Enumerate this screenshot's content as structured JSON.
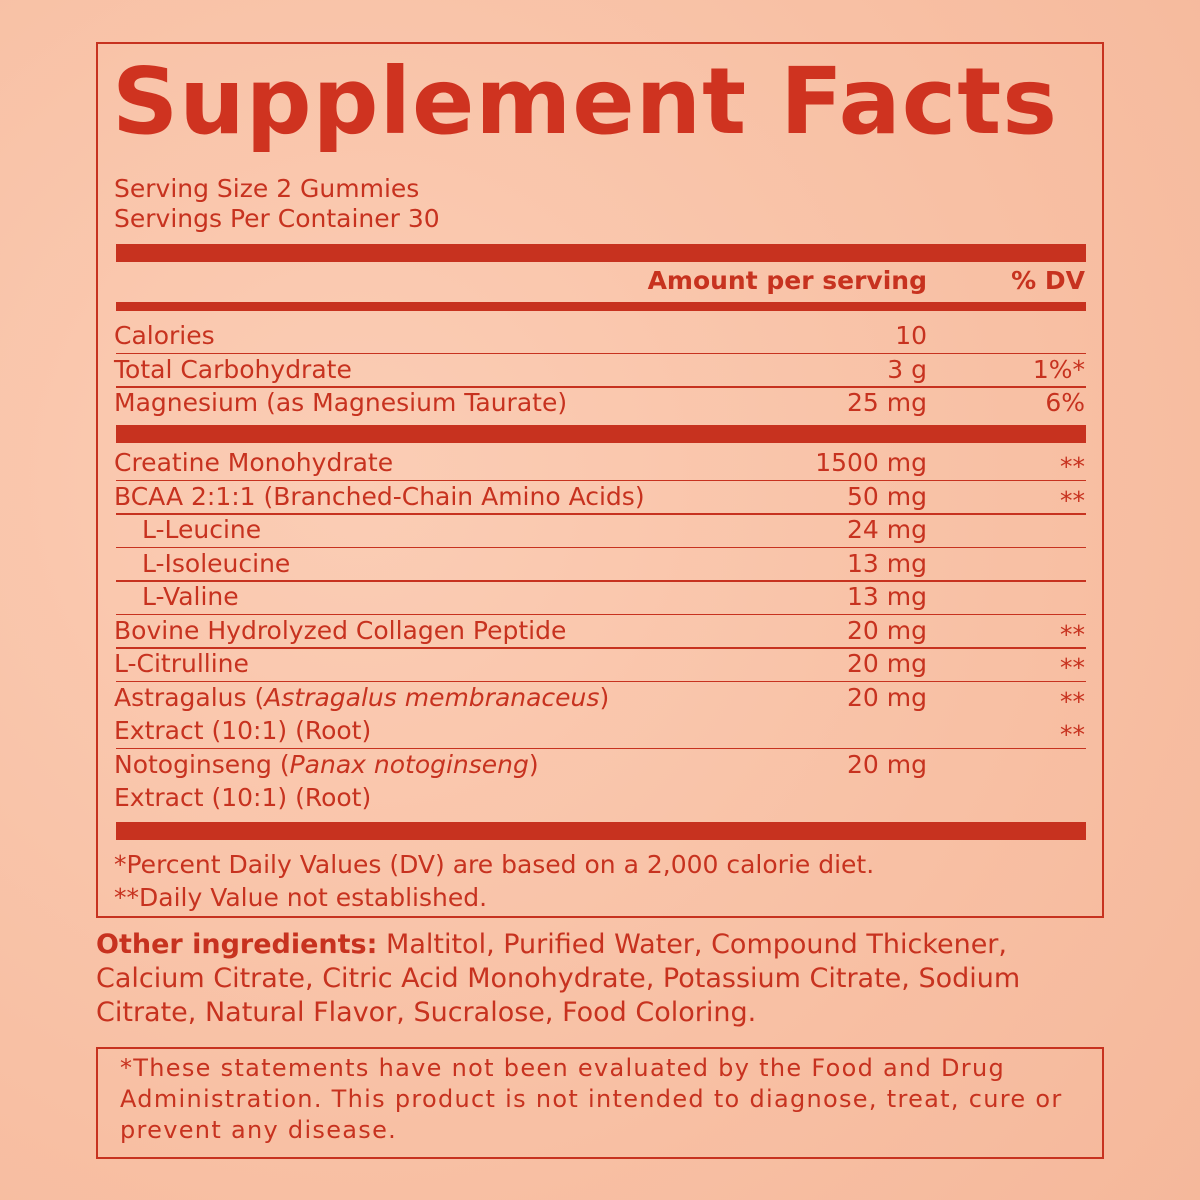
{
  "title": "Supplement Facts",
  "serving_size": "Serving Size 2 Gummies",
  "servings_per_container": "Servings Per Container 30",
  "table": {
    "header": {
      "amount": "Amount per serving",
      "dv": "% DV"
    },
    "sections": [
      {
        "rows": [
          {
            "name": "Calories",
            "amount": "10"
          },
          {
            "name": "Total Carbohydrate",
            "amount": "3 g",
            "dv": "1%*"
          },
          {
            "name": "Magnesium (as Magnesium Taurate)",
            "amount": "25 mg",
            "dv": "6%"
          }
        ]
      },
      {
        "rows": [
          {
            "name": "Creatine Monohydrate",
            "amount": "1500 mg",
            "dv": "**"
          },
          {
            "name": "BCAA 2:1:1 (Branched-Chain Amino Acids)",
            "amount": "50 mg",
            "dv": "**",
            "sub_rows": [
              {
                "name": "L-Leucine",
                "amount": "24 mg"
              },
              {
                "name": "L-Isoleucine",
                "amount": "13 mg"
              },
              {
                "name": "L-Valine",
                "amount": "13 mg"
              }
            ]
          },
          {
            "name": "Bovine Hydrolyzed Collagen Peptide",
            "amount": "20 mg",
            "dv": "**"
          },
          {
            "name": "L-Citrulline",
            "amount": "20 mg",
            "dv": "**"
          },
          {
            "name": "Astragalus (",
            "name_italic": "Astragalus membranaceus",
            "name_end": ")",
            "name_line2": "Extract (10:1) (Root)",
            "amount": "20 mg",
            "dv": "**",
            "dv_line2": "**"
          },
          {
            "name": "Notoginseng (",
            "name_italic": "Panax notoginseng",
            "name_end": ")",
            "name_line2": "Extract (10:1) (Root)",
            "amount": "20 mg"
          }
        ]
      }
    ]
  },
  "footnotes": [
    "*Percent Daily Values (DV) are based on a 2,000 calorie diet.",
    "**Daily Value not established."
  ],
  "other_ingredients": {
    "label": "Other ingredients:",
    "text": "Maltitol, Purified Water, Compound Thickener, Calcium Citrate, Citric Acid Monohydrate, Potassium Citrate, Sodium Citrate, Natural Flavor, Sucralose, Food Coloring."
  },
  "disclaimer": "*These statements have not been evaluated by the Food and Drug Administration. This product is not intended to diagnose, treat, cure or prevent any disease."
}
